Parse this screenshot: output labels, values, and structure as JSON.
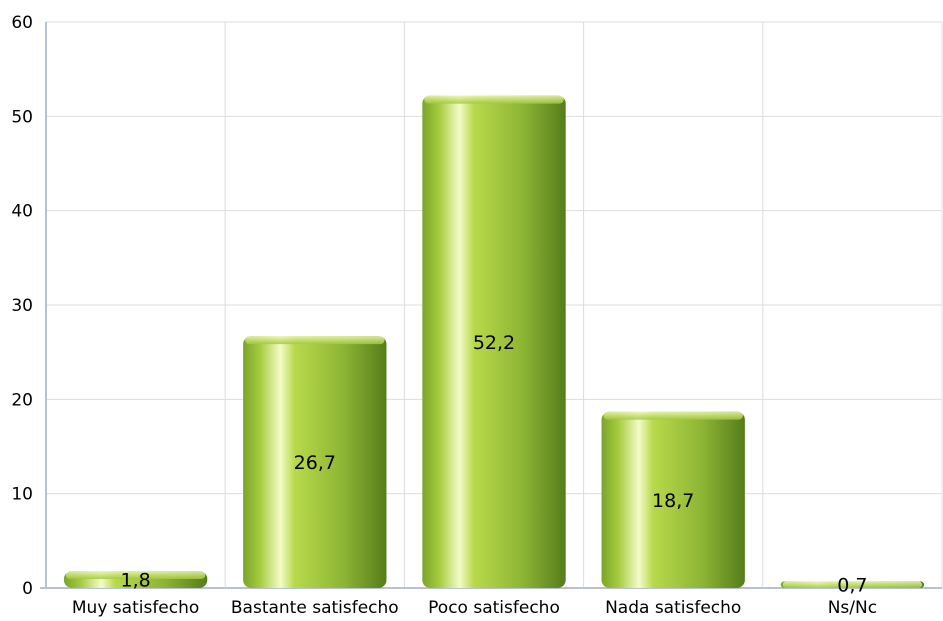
{
  "chart_data": {
    "type": "bar",
    "categories": [
      "Muy satisfecho",
      "Bastante satisfecho",
      "Poco satisfecho",
      "Nada satisfecho",
      "Ns/Nc"
    ],
    "values": [
      1.8,
      26.7,
      52.2,
      18.7,
      0.7
    ],
    "data_labels": [
      "1,8",
      "26,7",
      "52,2",
      "18,7",
      "0,7"
    ],
    "y_ticks": [
      0,
      10,
      20,
      30,
      40,
      50,
      60
    ],
    "ylim": [
      0,
      60
    ],
    "grid": true,
    "legend": "none",
    "title": "",
    "xlabel": "",
    "ylabel": "",
    "colors": {
      "bar_dark": "#5e8a1e",
      "bar_mid": "#9dc23a",
      "bar_light": "#f3fbc8",
      "grid": "#dddddd",
      "axis": "#b8c2d6"
    }
  }
}
